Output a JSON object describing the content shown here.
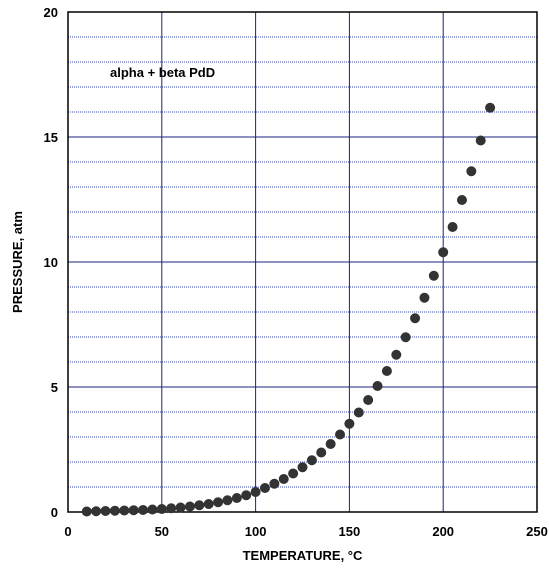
{
  "chart_data": {
    "type": "scatter",
    "xlabel": "TEMPERATURE, °C",
    "ylabel": "PRESSURE, atm",
    "annotation": "alpha + beta PdD",
    "xlim": [
      0,
      250
    ],
    "ylim": [
      0,
      20
    ],
    "xticks": [
      0,
      50,
      100,
      150,
      200,
      250
    ],
    "yticks": [
      0,
      5,
      10,
      15,
      20
    ],
    "x_tick_labels": [
      "0",
      "50",
      "100",
      "150",
      "200",
      "250"
    ],
    "y_tick_labels": [
      "0",
      "5",
      "10",
      "15",
      "20"
    ],
    "grid": true,
    "legend": "none",
    "colors": {
      "marker": "#333333",
      "major_grid": "#1a237e",
      "minor_grid": "#3949ab",
      "axis": "#000000"
    },
    "series": [
      {
        "x": [
          10,
          15,
          20,
          25,
          30,
          35,
          40,
          45,
          50,
          55,
          60,
          65,
          70,
          75,
          80,
          85,
          90,
          95,
          100,
          105,
          110,
          115,
          120,
          125,
          130,
          135,
          140,
          145,
          150,
          155,
          160,
          165,
          170,
          175,
          180,
          185,
          190,
          195,
          200,
          205,
          210,
          215,
          220,
          225
        ],
        "y": [
          0.02,
          0.03,
          0.04,
          0.05,
          0.06,
          0.07,
          0.08,
          0.1,
          0.12,
          0.15,
          0.18,
          0.22,
          0.27,
          0.32,
          0.39,
          0.47,
          0.56,
          0.67,
          0.8,
          0.96,
          1.13,
          1.32,
          1.54,
          1.79,
          2.07,
          2.38,
          2.72,
          3.1,
          3.53,
          3.98,
          4.48,
          5.04,
          5.64,
          6.29,
          6.99,
          7.75,
          8.57,
          9.45,
          10.39,
          11.4,
          12.48,
          13.63,
          14.86,
          16.17
        ]
      }
    ]
  }
}
